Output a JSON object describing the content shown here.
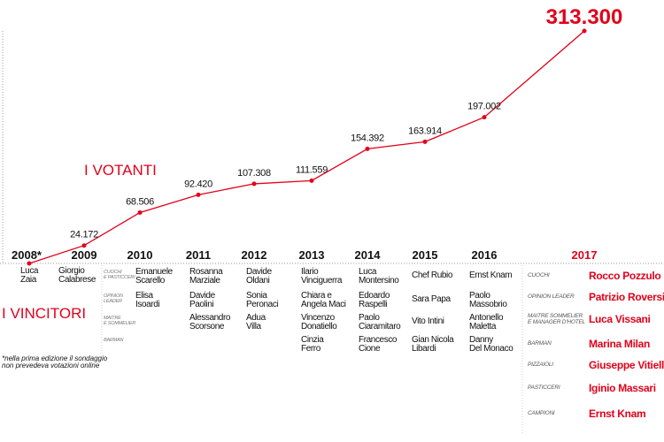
{
  "chart_data": {
    "type": "line",
    "title": "I VOTANTI",
    "categories": [
      "2008*",
      "2009",
      "2010",
      "2011",
      "2012",
      "2013",
      "2014",
      "2015",
      "2016",
      "2017"
    ],
    "values": [
      null,
      24172,
      68506,
      92420,
      107308,
      111559,
      154392,
      163914,
      197002,
      313300
    ],
    "value_labels": [
      "",
      "24.172",
      "68.506",
      "92.420",
      "107.308",
      "111.559",
      "154.392",
      "163.914",
      "197.002",
      "313.300"
    ],
    "ylim": [
      0,
      313300
    ],
    "color": "#e2001a"
  },
  "winners": {
    "title": "I VINCITORI",
    "note_line1": "*nella prima edizione il sondaggio",
    "note_line2": "non prevedeva votazioni online",
    "side_categories": [
      [
        "CUOCHI",
        "E PASTICCERI"
      ],
      [
        "OPINION",
        "LEADER"
      ],
      [
        "MAITRE",
        "E SOMMELIER"
      ],
      [
        "BARMAN"
      ]
    ],
    "columns": [
      {
        "year": "2008*",
        "names": [
          [
            "Luca",
            "Zaia"
          ]
        ]
      },
      {
        "year": "2009",
        "names": [
          [
            "Giorgio",
            "Calabrese"
          ]
        ]
      },
      {
        "year": "2010",
        "names": [
          [
            "Emanuele",
            "Scarello"
          ],
          [
            "Elisa",
            "Isoardi"
          ]
        ]
      },
      {
        "year": "2011",
        "names": [
          [
            "Rosanna",
            "Marziale"
          ],
          [
            "Davide",
            "Paolini"
          ],
          [
            "Alessandro",
            "Scorsone"
          ]
        ]
      },
      {
        "year": "2012",
        "names": [
          [
            "Davide",
            "Oldani"
          ],
          [
            "Sonia",
            "Peronaci"
          ],
          [
            "Adua",
            "Villa"
          ]
        ]
      },
      {
        "year": "2013",
        "names": [
          [
            "Ilario",
            "Vinciguerra"
          ],
          [
            "Chiara e",
            "Angela Maci"
          ],
          [
            "Vincenzo",
            "Donatiello"
          ],
          [
            "Cinzia",
            "Ferro"
          ]
        ]
      },
      {
        "year": "2014",
        "names": [
          [
            "Luca",
            "Montersino"
          ],
          [
            "Edoardo",
            "Raspelli"
          ],
          [
            "Paolo",
            "Ciaramitaro"
          ],
          [
            "Francesco",
            "Cione"
          ]
        ]
      },
      {
        "year": "2015",
        "names": [
          [
            "Chef Rubio"
          ],
          [
            "Sara Papa"
          ],
          [
            "Vito Intini"
          ],
          [
            "Gian Nicola",
            "Libardi"
          ]
        ]
      },
      {
        "year": "2016",
        "names": [
          [
            "Ernst Knam"
          ],
          [
            "Paolo",
            "Massobrio"
          ],
          [
            "Antonello",
            "Maletta"
          ],
          [
            "Danny",
            "Del Monaco"
          ]
        ]
      }
    ],
    "year_2017": [
      {
        "category": [
          "CUOCHI"
        ],
        "name": "Rocco Pozzulo"
      },
      {
        "category": [
          "OPINION LEADER"
        ],
        "name": "Patrizio Roversi"
      },
      {
        "category": [
          "MAITRE SOMMELIER",
          "E MANAGER D'HOTEL"
        ],
        "name": "Luca Vissani"
      },
      {
        "category": [
          "BARMAN"
        ],
        "name": "Marina Milan"
      },
      {
        "category": [
          "PIZZAIOLI"
        ],
        "name": "Giuseppe Vitiello"
      },
      {
        "category": [
          "PASTICCERI"
        ],
        "name": "Iginio Massari"
      },
      {
        "category": [
          "CAMPIONI"
        ],
        "name": "Ernst Knam"
      }
    ]
  }
}
